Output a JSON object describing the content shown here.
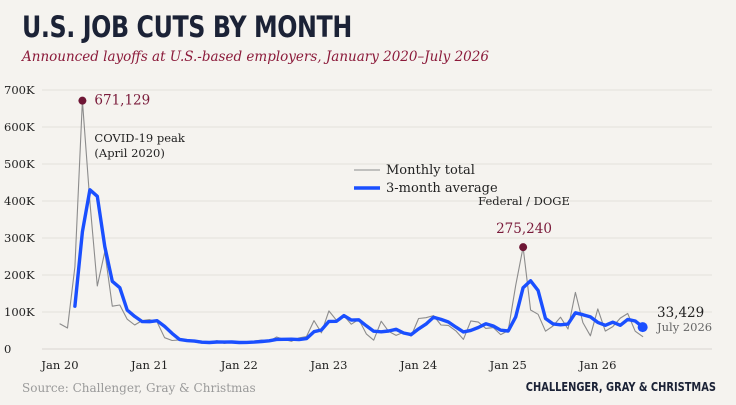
{
  "header": {
    "title": "U.S. JOB CUTS BY MONTH",
    "subtitle": "Announced layoffs at U.S.-based employers, January 2020–July 2026"
  },
  "footer": {
    "source": "Source: Challenger, Gray & Christmas",
    "brand": "CHALLENGER, GRAY & CHRISTMAS"
  },
  "colors": {
    "background": "#f5f3ef",
    "monthly_line": "#8c8c8c",
    "average_line": "#1a4fff",
    "highlight_dot": "#6e1635",
    "title": "#1b2236",
    "subtitle": "#8b1a3a"
  },
  "chart_data": {
    "type": "line",
    "title": "U.S. JOB CUTS BY MONTH",
    "subtitle": "Announced layoffs at U.S.-based employers, January 2020–July 2026",
    "ylim": [
      0,
      700000
    ],
    "y_ticks": [
      0,
      100000,
      200000,
      300000,
      400000,
      500000,
      600000,
      700000
    ],
    "y_tick_labels": [
      "0",
      "100K",
      "200K",
      "300K",
      "400K",
      "500K",
      "600K",
      "700K"
    ],
    "x_tick_labels": [
      "Jan 20",
      "Jan 21",
      "Jan 22",
      "Jan 23",
      "Jan 24",
      "Jan 25",
      "Jan 26"
    ],
    "x_tick_values": [
      "2020-01",
      "2021-01",
      "2022-01",
      "2023-01",
      "2024-01",
      "2025-01",
      "2026-01"
    ],
    "grid": "horizontal",
    "legend": {
      "placement": "center",
      "entries": [
        "Monthly total",
        "3-month average"
      ]
    },
    "series": [
      {
        "name": "Monthly total",
        "color": "#8c8c8c",
        "points": [
          [
            "2020-01",
            67735
          ],
          [
            "2020-02",
            56660
          ],
          [
            "2020-03",
            222288
          ],
          [
            "2020-04",
            671129
          ],
          [
            "2020-05",
            397016
          ],
          [
            "2020-06",
            170219
          ],
          [
            "2020-07",
            262649
          ],
          [
            "2020-08",
            115762
          ],
          [
            "2020-09",
            118804
          ],
          [
            "2020-10",
            80666
          ],
          [
            "2020-11",
            64797
          ],
          [
            "2020-12",
            77030
          ],
          [
            "2021-01",
            79552
          ],
          [
            "2021-02",
            72841
          ],
          [
            "2021-03",
            30603
          ],
          [
            "2021-04",
            22913
          ],
          [
            "2021-05",
            24586
          ],
          [
            "2021-06",
            20476
          ],
          [
            "2021-07",
            18942
          ],
          [
            "2021-08",
            15723
          ],
          [
            "2021-09",
            17895
          ],
          [
            "2021-10",
            22822
          ],
          [
            "2021-11",
            14875
          ],
          [
            "2021-12",
            19052
          ],
          [
            "2022-01",
            19064
          ],
          [
            "2022-02",
            15245
          ],
          [
            "2022-03",
            21387
          ],
          [
            "2022-04",
            24286
          ],
          [
            "2022-05",
            20712
          ],
          [
            "2022-06",
            32517
          ],
          [
            "2022-07",
            25810
          ],
          [
            "2022-08",
            20781
          ],
          [
            "2022-09",
            29989
          ],
          [
            "2022-10",
            33843
          ],
          [
            "2022-11",
            76835
          ],
          [
            "2022-12",
            43651
          ],
          [
            "2023-01",
            102943
          ],
          [
            "2023-02",
            77770
          ],
          [
            "2023-03",
            89703
          ],
          [
            "2023-04",
            66995
          ],
          [
            "2023-05",
            80089
          ],
          [
            "2023-06",
            40709
          ],
          [
            "2023-07",
            23697
          ],
          [
            "2023-08",
            75151
          ],
          [
            "2023-09",
            47457
          ],
          [
            "2023-10",
            36836
          ],
          [
            "2023-11",
            45510
          ],
          [
            "2023-12",
            34817
          ],
          [
            "2024-01",
            82307
          ],
          [
            "2024-02",
            84638
          ],
          [
            "2024-03",
            90309
          ],
          [
            "2024-04",
            64789
          ],
          [
            "2024-05",
            63816
          ],
          [
            "2024-06",
            48786
          ],
          [
            "2024-07",
            25885
          ],
          [
            "2024-08",
            75891
          ],
          [
            "2024-09",
            72821
          ],
          [
            "2024-10",
            55597
          ],
          [
            "2024-11",
            57727
          ],
          [
            "2024-12",
            38792
          ],
          [
            "2025-01",
            49795
          ],
          [
            "2025-02",
            172017
          ],
          [
            "2025-03",
            275240
          ],
          [
            "2025-04",
            105441
          ],
          [
            "2025-05",
            93816
          ],
          [
            "2025-06",
            47999
          ],
          [
            "2025-07",
            62075
          ],
          [
            "2025-08",
            85979
          ],
          [
            "2025-09",
            54064
          ],
          [
            "2025-10",
            153074
          ],
          [
            "2025-11",
            71321
          ],
          [
            "2025-12",
            35553
          ],
          [
            "2026-01",
            108435
          ],
          [
            "2026-02",
            48307
          ],
          [
            "2026-03",
            60620
          ],
          [
            "2026-04",
            83387
          ],
          [
            "2026-05",
            96000
          ],
          [
            "2026-06",
            48000
          ],
          [
            "2026-07",
            33429
          ]
        ]
      },
      {
        "name": "3-month average",
        "color": "#1a4fff",
        "points": [
          [
            "2020-03",
            115561
          ],
          [
            "2020-04",
            316692
          ],
          [
            "2020-05",
            430144
          ],
          [
            "2020-06",
            412788
          ],
          [
            "2020-07",
            276628
          ],
          [
            "2020-08",
            182877
          ],
          [
            "2020-09",
            165738
          ],
          [
            "2020-10",
            105077
          ],
          [
            "2020-11",
            88089
          ],
          [
            "2020-12",
            74164
          ],
          [
            "2021-01",
            73793
          ],
          [
            "2021-02",
            76474
          ],
          [
            "2021-03",
            60999
          ],
          [
            "2021-04",
            42119
          ],
          [
            "2021-05",
            26034
          ],
          [
            "2021-06",
            22658
          ],
          [
            "2021-07",
            21335
          ],
          [
            "2021-08",
            18380
          ],
          [
            "2021-09",
            17520
          ],
          [
            "2021-10",
            18813
          ],
          [
            "2021-11",
            18531
          ],
          [
            "2021-12",
            18916
          ],
          [
            "2022-01",
            17664
          ],
          [
            "2022-02",
            17787
          ],
          [
            "2022-03",
            18565
          ],
          [
            "2022-04",
            20306
          ],
          [
            "2022-05",
            22128
          ],
          [
            "2022-06",
            25838
          ],
          [
            "2022-07",
            26346
          ],
          [
            "2022-08",
            26369
          ],
          [
            "2022-09",
            25527
          ],
          [
            "2022-10",
            28204
          ],
          [
            "2022-11",
            46889
          ],
          [
            "2022-12",
            51443
          ],
          [
            "2023-01",
            74476
          ],
          [
            "2023-02",
            74788
          ],
          [
            "2023-03",
            90139
          ],
          [
            "2023-04",
            78156
          ],
          [
            "2023-05",
            78929
          ],
          [
            "2023-06",
            62598
          ],
          [
            "2023-07",
            48165
          ],
          [
            "2023-08",
            46519
          ],
          [
            "2023-09",
            48768
          ],
          [
            "2023-10",
            53148
          ],
          [
            "2023-11",
            43268
          ],
          [
            "2023-12",
            39054
          ],
          [
            "2024-01",
            54211
          ],
          [
            "2024-02",
            67254
          ],
          [
            "2024-03",
            85751
          ],
          [
            "2024-04",
            79912
          ],
          [
            "2024-05",
            72971
          ],
          [
            "2024-06",
            59130
          ],
          [
            "2024-07",
            46162
          ],
          [
            "2024-08",
            50187
          ],
          [
            "2024-09",
            58199
          ],
          [
            "2024-10",
            68103
          ],
          [
            "2024-11",
            62048
          ],
          [
            "2024-12",
            50705
          ],
          [
            "2025-01",
            48771
          ],
          [
            "2025-02",
            86868
          ],
          [
            "2025-03",
            165684
          ],
          [
            "2025-04",
            184233
          ],
          [
            "2025-05",
            158166
          ],
          [
            "2025-06",
            82419
          ],
          [
            "2025-07",
            67963
          ],
          [
            "2025-08",
            65351
          ],
          [
            "2025-09",
            67373
          ],
          [
            "2025-10",
            97706
          ],
          [
            "2025-11",
            92820
          ],
          [
            "2025-12",
            86649
          ],
          [
            "2026-01",
            71770
          ],
          [
            "2026-02",
            64098
          ],
          [
            "2026-03",
            72454
          ],
          [
            "2026-04",
            64105
          ],
          [
            "2026-05",
            80002
          ],
          [
            "2026-06",
            75796
          ],
          [
            "2026-07",
            59143
          ]
        ]
      }
    ],
    "annotations": [
      {
        "x": "2020-04",
        "y": 671129,
        "value_label": "671,129",
        "text": [
          "COVID-19 peak",
          "(April 2020)"
        ]
      },
      {
        "x": "2025-03",
        "y": 275240,
        "value_label": "275,240",
        "text": [
          "Federal / DOGE"
        ]
      },
      {
        "x": "2026-07",
        "y": 59143,
        "value_label": "33,429",
        "text": [
          "July 2026"
        ]
      }
    ]
  }
}
